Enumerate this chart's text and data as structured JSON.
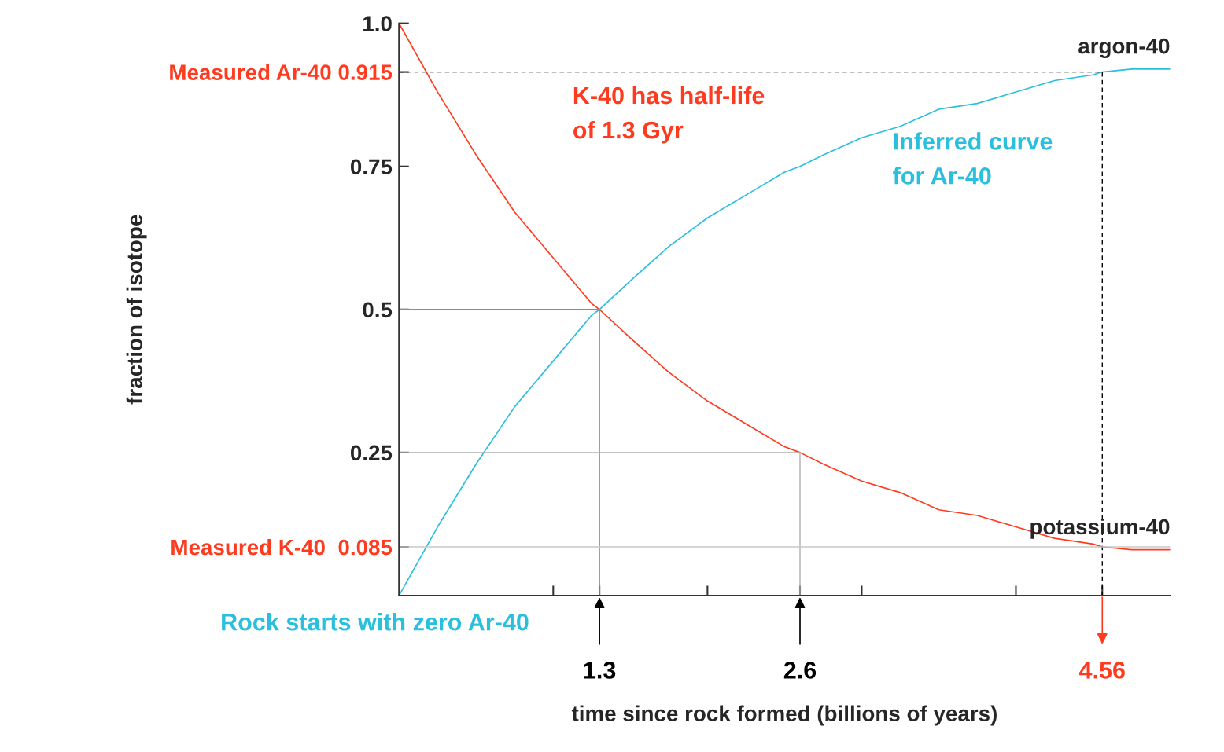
{
  "chart_data": {
    "type": "line",
    "xlabel": "time since rock formed (billions of years)",
    "ylabel": "fraction of isotope",
    "x": [
      0,
      0.25,
      0.5,
      0.75,
      1,
      1.25,
      1.3,
      1.5,
      1.75,
      2,
      2.25,
      2.5,
      2.6,
      2.75,
      3,
      3.25,
      3.5,
      3.75,
      4,
      4.25,
      4.5,
      4.56,
      4.75,
      5
    ],
    "series": [
      {
        "name": "potassium-40",
        "color": "#ff3b1f",
        "values": [
          1,
          0.88,
          0.77,
          0.67,
          0.59,
          0.51,
          0.5,
          0.45,
          0.39,
          0.34,
          0.3,
          0.26,
          0.25,
          0.23,
          0.2,
          0.18,
          0.15,
          0.14,
          0.12,
          0.1,
          0.09,
          0.085,
          0.08,
          0.08
        ]
      },
      {
        "name": "argon-40",
        "color": "#2bbfde",
        "values": [
          0,
          0.12,
          0.23,
          0.33,
          0.41,
          0.49,
          0.5,
          0.55,
          0.61,
          0.66,
          0.7,
          0.74,
          0.75,
          0.77,
          0.8,
          0.82,
          0.85,
          0.86,
          0.88,
          0.9,
          0.91,
          0.915,
          0.92,
          0.92
        ]
      },
      {
        "type": "line",
        "color": "#8c8c8c",
        "x": [
          0,
          1.3,
          1.3
        ],
        "values": [
          0.5,
          0.5,
          0
        ]
      },
      {
        "type": "line",
        "color": "#b0b0b0",
        "x": [
          0,
          2.6,
          2.6
        ],
        "values": [
          0.25,
          0.25,
          0
        ]
      },
      {
        "type": "line",
        "color": "#000000",
        "line_style": "dashed",
        "x": [
          0,
          4.56,
          4.56
        ],
        "values": [
          0.915,
          0.915,
          0
        ]
      }
    ],
    "ref_lines": [
      {
        "axis": "y",
        "value": 0.085,
        "color": "#c8c8c8"
      }
    ],
    "xlim": [
      0,
      5
    ],
    "xticks": [
      {
        "value": 1,
        "label": null
      },
      {
        "value": 2,
        "label": null
      },
      {
        "value": 3,
        "label": null
      },
      {
        "value": 4,
        "label": null
      },
      1.3,
      2.6,
      4.56
    ],
    "ylim": [
      0,
      1
    ],
    "yticks": [
      0.25,
      0.5,
      0.75,
      {
        "value": 1,
        "label": "1.0"
      },
      {
        "value": 0.915,
        "label": "Measured Ar-40 0.915"
      },
      {
        "value": 0.085,
        "label": "Measured K-40  0.085"
      }
    ],
    "annotations": [
      "K-40 has half-life\nof 1.3 Gyr",
      "Inferred curve\nfor Ar-40",
      "Rock starts with zero Ar-40"
    ],
    "grid": false,
    "legend": false,
    "marker": "none",
    "line_style": "solid"
  }
}
